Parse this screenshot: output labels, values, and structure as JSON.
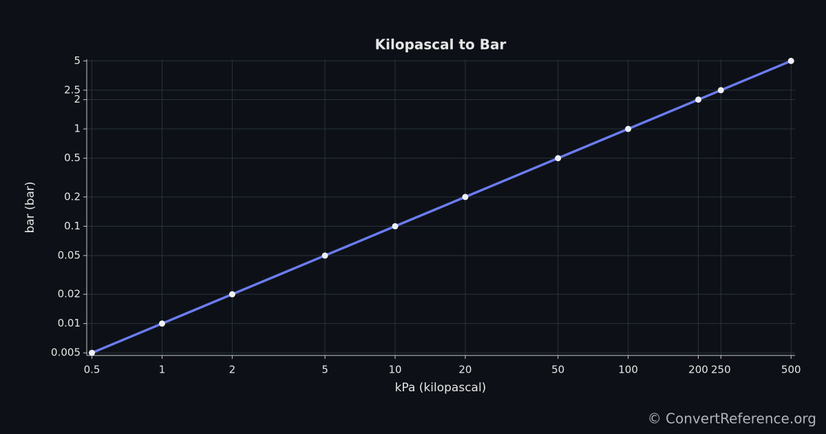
{
  "chart_data": {
    "type": "line",
    "title": "Kilopascal to Bar",
    "x_label": "kPa (kilopascal)",
    "y_label": "bar (bar)",
    "x": [
      0.5,
      1,
      2,
      5,
      10,
      20,
      50,
      100,
      200,
      250,
      500
    ],
    "values": [
      0.005,
      0.01,
      0.02,
      0.05,
      0.1,
      0.2,
      0.5,
      1,
      2,
      2.5,
      5
    ],
    "color": "#6b7cf0",
    "marker_color": "#eef0f6",
    "xlim": [
      0.475,
      520
    ],
    "ylim": [
      0.0047,
      5.2
    ],
    "xticks": [
      0.5,
      1,
      2,
      5,
      10,
      20,
      50,
      100,
      200,
      250,
      500
    ],
    "yticks": [
      0.005,
      0.01,
      0.02,
      0.05,
      0.1,
      0.2,
      0.5,
      1,
      2,
      2.5,
      5
    ],
    "xscale": "log",
    "yscale": "log",
    "grid": true
  },
  "footer": "© ConvertReference.org"
}
